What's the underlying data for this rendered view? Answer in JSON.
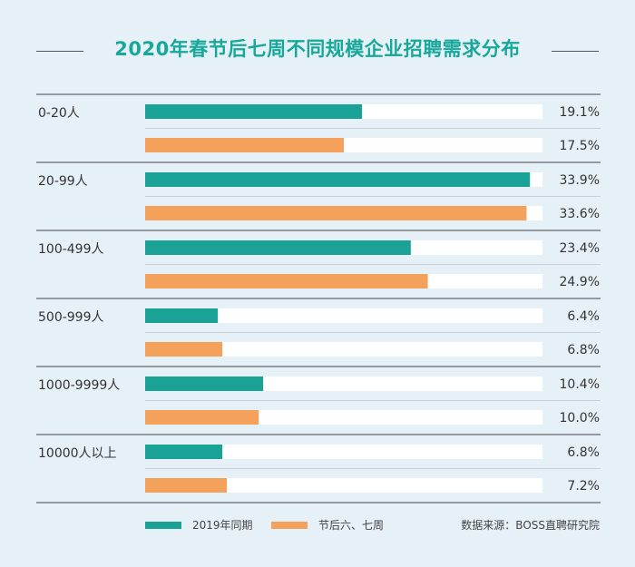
{
  "title": "2020年春节后七周不同规模企业招聘需求分布",
  "source": "数据来源：BOSS直聘研究院",
  "colors": {
    "series_2019": "#1aa297",
    "series_2020": "#f3a15b",
    "track": "#ffffff",
    "divider": "#444444",
    "subdivider": "#c9cfd4"
  },
  "chart_data": {
    "type": "bar",
    "orientation": "horizontal",
    "title": "2020年春节后七周不同规模企业招聘需求分布",
    "categories": [
      "0-20人",
      "20-99人",
      "100-499人",
      "500-999人",
      "1000-9999人",
      "10000人以上"
    ],
    "series": [
      {
        "name": "2019年同期",
        "values": [
          19.1,
          33.9,
          23.4,
          6.4,
          10.4,
          6.8
        ]
      },
      {
        "name": "节后六、七周",
        "values": [
          17.5,
          33.6,
          24.9,
          6.8,
          10.0,
          7.2
        ]
      }
    ],
    "unit": "%",
    "xlim": [
      0,
      35
    ],
    "legend_position": "bottom",
    "grid": false
  }
}
